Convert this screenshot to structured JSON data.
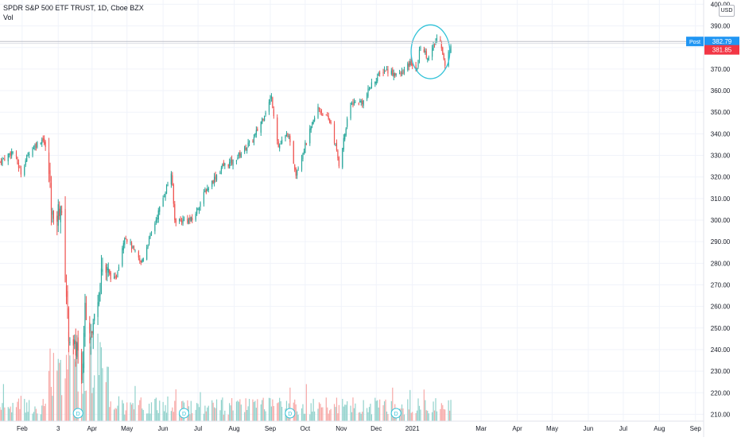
{
  "legend": {
    "title": "SPDR S&P 500 ETF TRUST, 1D, Cboe BZX",
    "volume_label": "Vol"
  },
  "currency": "USD",
  "price_tags": {
    "post_label": "Post",
    "post_price": "382.79",
    "last_price": "381.85",
    "post_color": "#2196f3",
    "last_color": "#f23645"
  },
  "colors": {
    "up": "#26a69a",
    "down": "#ef5350",
    "up_volume": "#92d2cc",
    "down_volume": "#f7a9a7",
    "highlight_circle": "#33c3d8",
    "grid": "#f0f3fa"
  },
  "dividend_marker": "D",
  "chart_data": {
    "type": "candlestick",
    "title": "SPDR S&P 500 ETF TRUST, 1D, Cboe BZX",
    "y_axis": {
      "ticks": [
        400,
        390,
        380,
        370,
        360,
        350,
        340,
        330,
        320,
        310,
        300,
        290,
        280,
        270,
        260,
        250,
        240,
        230,
        220,
        210
      ],
      "tick_labels": [
        "400.00",
        "390.00",
        "380.00",
        "370.00",
        "360.00",
        "350.00",
        "340.00",
        "330.00",
        "320.00",
        "310.00",
        "300.00",
        "290.00",
        "280.00",
        "270.00",
        "260.00",
        "250.00",
        "240.00",
        "230.00",
        "220.00",
        "210.00"
      ],
      "range": [
        205,
        402
      ]
    },
    "x_axis": {
      "tick_labels": [
        "Feb",
        "3",
        "Apr",
        "May",
        "Jun",
        "Jul",
        "Aug",
        "Sep",
        "Oct",
        "Nov",
        "Dec",
        "2021",
        "Mar",
        "Apr",
        "May",
        "Jun",
        "Jul",
        "Aug",
        "Sep"
      ],
      "range": [
        "2020-01-13",
        "2021-09-08"
      ]
    },
    "dividend_dates": [
      "2020-03-20",
      "2020-06-19",
      "2020-09-18",
      "2020-12-18"
    ],
    "highlight": {
      "shape": "ellipse",
      "start": "2021-01-04",
      "end": "2021-01-29",
      "low": 367,
      "high": 389
    },
    "anchors": [
      [
        "2020-01-13",
        327
      ],
      [
        "2020-01-24",
        332
      ],
      [
        "2020-01-31",
        322
      ],
      [
        "2020-02-07",
        332
      ],
      [
        "2020-02-19",
        338
      ],
      [
        "2020-02-21",
        333
      ],
      [
        "2020-02-24",
        322
      ],
      [
        "2020-02-28",
        296
      ],
      [
        "2020-03-05",
        308
      ],
      [
        "2020-03-09",
        275
      ],
      [
        "2020-03-12",
        248
      ],
      [
        "2020-03-16",
        239
      ],
      [
        "2020-03-19",
        242
      ],
      [
        "2020-03-23",
        222
      ],
      [
        "2020-03-26",
        261
      ],
      [
        "2020-04-01",
        247
      ],
      [
        "2020-04-09",
        278
      ],
      [
        "2020-04-21",
        272
      ],
      [
        "2020-04-29",
        293
      ],
      [
        "2020-05-13",
        280
      ],
      [
        "2020-05-27",
        302
      ],
      [
        "2020-06-08",
        322
      ],
      [
        "2020-06-11",
        300
      ],
      [
        "2020-06-26",
        300
      ],
      [
        "2020-07-07",
        313
      ],
      [
        "2020-07-22",
        325
      ],
      [
        "2020-07-31",
        327
      ],
      [
        "2020-08-18",
        338
      ],
      [
        "2020-09-02",
        357
      ],
      [
        "2020-09-08",
        334
      ],
      [
        "2020-09-16",
        340
      ],
      [
        "2020-09-23",
        322
      ],
      [
        "2020-10-12",
        352
      ],
      [
        "2020-10-23",
        345
      ],
      [
        "2020-10-30",
        326
      ],
      [
        "2020-11-09",
        354
      ],
      [
        "2020-11-20",
        355
      ],
      [
        "2020-11-27",
        363
      ],
      [
        "2020-12-08",
        370
      ],
      [
        "2020-12-21",
        367
      ],
      [
        "2020-12-31",
        373
      ],
      [
        "2021-01-04",
        368
      ],
      [
        "2021-01-08",
        381
      ],
      [
        "2021-01-15",
        375
      ],
      [
        "2021-01-22",
        384
      ],
      [
        "2021-01-25",
        384
      ],
      [
        "2021-01-29",
        371
      ],
      [
        "2021-02-03",
        381.85
      ]
    ]
  }
}
